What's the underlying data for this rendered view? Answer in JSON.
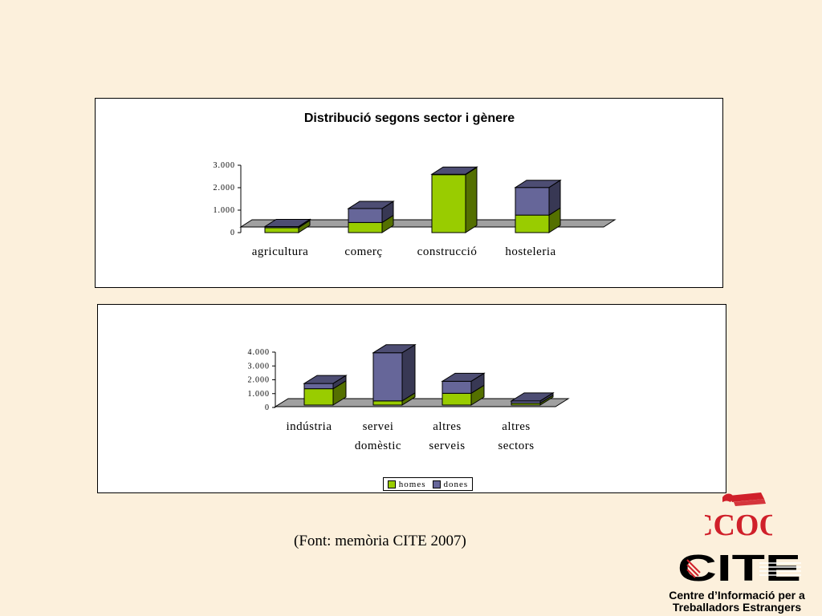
{
  "colors": {
    "homes": "#99cc00",
    "dones": "#666699",
    "floor": "#a0a0a0"
  },
  "source_note": "(Font: memòria CITE 2007)",
  "logos": {
    "ccoo_text": "CCOO",
    "cite_text": "CITE"
  },
  "org_name": {
    "line1": "Centre d’Informació per a",
    "line2": "Treballadors Estrangers"
  },
  "legend": {
    "homes_label": "homes",
    "dones_label": "dones"
  },
  "chart_data": [
    {
      "type": "bar",
      "stacked": true,
      "three_d": true,
      "title": "Distribució segons sector i gènere",
      "categories": [
        [
          "agricultura"
        ],
        [
          "comerç"
        ],
        [
          "construcció"
        ],
        [
          "hosteleria"
        ]
      ],
      "series": [
        {
          "name": "homes",
          "values": [
            220,
            450,
            2580,
            780
          ]
        },
        {
          "name": "dones",
          "values": [
            50,
            620,
            20,
            1230
          ]
        }
      ],
      "ylim": [
        0,
        3000
      ],
      "yticks": [
        "0",
        "1.000",
        "2.000",
        "3.000"
      ],
      "ytick_values": [
        0,
        1000,
        2000,
        3000
      ],
      "legend": "none"
    },
    {
      "type": "bar",
      "stacked": true,
      "three_d": true,
      "title": "",
      "categories": [
        [
          "indústria"
        ],
        [
          "servei",
          "domèstic"
        ],
        [
          "altres",
          "serveis"
        ],
        [
          "altres",
          "sectors"
        ]
      ],
      "series": [
        {
          "name": "homes",
          "values": [
            1180,
            300,
            850,
            130
          ]
        },
        {
          "name": "dones",
          "values": [
            380,
            3480,
            870,
            170
          ]
        }
      ],
      "ylim": [
        0,
        4000
      ],
      "yticks": [
        "0",
        "1.000",
        "2.000",
        "3.000",
        "4.000"
      ],
      "ytick_values": [
        0,
        1000,
        2000,
        3000,
        4000
      ],
      "legend": "bottom"
    }
  ]
}
